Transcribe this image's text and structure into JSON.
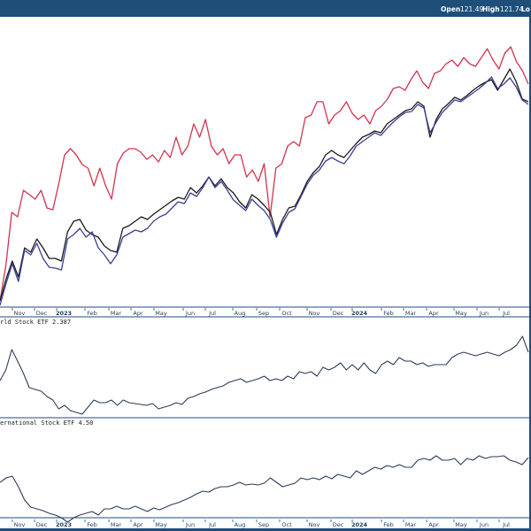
{
  "header": {
    "open_label": "Open",
    "open_value": "121.49",
    "high_label": "High",
    "high_value": "121.74",
    "low_label": "Lo"
  },
  "colors": {
    "frame": "#1f4e79",
    "series_red": "#d0344f",
    "series_dark": "#1a1a1a",
    "series_navy": "#3a3f99",
    "indicator_line": "#2e3c55"
  },
  "chart_data": [
    {
      "type": "line",
      "panel": "main",
      "grid": false,
      "x_tick_labels": [
        {
          "label": "Nov",
          "bold": false
        },
        {
          "label": "Dec",
          "bold": false
        },
        {
          "label": "2023",
          "bold": true
        },
        {
          "label": "Feb",
          "bold": false
        },
        {
          "label": "Mar",
          "bold": false
        },
        {
          "label": "Apr",
          "bold": false
        },
        {
          "label": "May",
          "bold": false
        },
        {
          "label": "Jun",
          "bold": false
        },
        {
          "label": "Jul",
          "bold": false
        },
        {
          "label": "Aug",
          "bold": false
        },
        {
          "label": "Sep",
          "bold": false
        },
        {
          "label": "Oct",
          "bold": false
        },
        {
          "label": "Nov",
          "bold": false
        },
        {
          "label": "Dec",
          "bold": false
        },
        {
          "label": "2024",
          "bold": true
        },
        {
          "label": "Feb",
          "bold": false
        },
        {
          "label": "Mar",
          "bold": false
        },
        {
          "label": "Apr",
          "bold": false
        },
        {
          "label": "May",
          "bold": false
        },
        {
          "label": "Jun",
          "bold": false
        },
        {
          "label": "Jul",
          "bold": false
        }
      ],
      "series": [
        {
          "color": "#d0344f",
          "values": [
            340,
            300,
            240,
            245,
            215,
            220,
            225,
            215,
            235,
            237,
            208,
            175,
            168,
            175,
            186,
            190,
            210,
            190,
            210,
            225,
            185,
            173,
            168,
            168,
            172,
            180,
            175,
            183,
            170,
            178,
            155,
            175,
            165,
            140,
            155,
            135,
            165,
            175,
            168,
            185,
            175,
            175,
            200,
            192,
            205,
            185,
            245,
            190,
            185,
            165,
            160,
            165,
            133,
            130,
            115,
            115,
            140,
            130,
            125,
            115,
            128,
            135,
            130,
            140,
            125,
            120,
            112,
            100,
            98,
            102,
            90,
            80,
            93,
            100,
            83,
            80,
            72,
            68,
            75,
            65,
            72,
            75,
            65,
            55,
            68,
            78,
            60,
            53,
            70,
            80,
            95
          ]
        },
        {
          "color": "#1a1a1a",
          "values": [
            340,
            315,
            295,
            313,
            280,
            285,
            270,
            280,
            292,
            292,
            295,
            262,
            250,
            248,
            260,
            265,
            268,
            278,
            283,
            285,
            258,
            255,
            250,
            245,
            248,
            242,
            237,
            232,
            227,
            223,
            225,
            212,
            218,
            210,
            200,
            210,
            202,
            212,
            218,
            228,
            235,
            220,
            225,
            232,
            240,
            265,
            248,
            235,
            233,
            220,
            205,
            195,
            188,
            175,
            170,
            175,
            178,
            170,
            162,
            155,
            152,
            148,
            150,
            140,
            135,
            130,
            125,
            123,
            115,
            120,
            155,
            135,
            123,
            117,
            110,
            113,
            108,
            102,
            97,
            93,
            90,
            102,
            90,
            78,
            92,
            112,
            115
          ]
        },
        {
          "color": "#3a3f99",
          "values": [
            345,
            320,
            298,
            318,
            283,
            288,
            275,
            292,
            302,
            303,
            305,
            270,
            265,
            258,
            268,
            262,
            280,
            288,
            298,
            288,
            268,
            264,
            260,
            262,
            258,
            250,
            245,
            242,
            235,
            228,
            230,
            218,
            222,
            212,
            200,
            212,
            205,
            215,
            226,
            232,
            238,
            225,
            232,
            238,
            248,
            268,
            252,
            240,
            236,
            222,
            208,
            198,
            192,
            182,
            178,
            182,
            185,
            176,
            165,
            160,
            155,
            150,
            153,
            145,
            138,
            132,
            127,
            126,
            118,
            122,
            150,
            138,
            127,
            120,
            113,
            115,
            110,
            105,
            100,
            94,
            87,
            100,
            95,
            88,
            98,
            113,
            118
          ]
        }
      ]
    },
    {
      "type": "line",
      "panel": "indicator-1",
      "label": "rld Stock ETF 2.387",
      "grid": false,
      "series": [
        {
          "color": "#2e3c55",
          "values": [
            430,
            418,
            395,
            408,
            422,
            438,
            440,
            442,
            448,
            452,
            462,
            458,
            464,
            466,
            468,
            460,
            452,
            455,
            455,
            452,
            458,
            452,
            455,
            456,
            457,
            458,
            456,
            462,
            460,
            458,
            455,
            457,
            450,
            448,
            445,
            443,
            440,
            438,
            436,
            432,
            430,
            428,
            432,
            430,
            428,
            425,
            430,
            428,
            430,
            425,
            428,
            420,
            422,
            420,
            425,
            415,
            418,
            415,
            410,
            418,
            412,
            418,
            410,
            418,
            422,
            412,
            408,
            412,
            404,
            408,
            408,
            412,
            410,
            414,
            412,
            412,
            412,
            404,
            400,
            398,
            400,
            402,
            400,
            398,
            400,
            402,
            398,
            395,
            390,
            380,
            398
          ]
        }
      ]
    },
    {
      "type": "line",
      "panel": "indicator-2",
      "label": "ernational Stock ETF 4.50",
      "grid": false,
      "series": [
        {
          "color": "#2e3c55",
          "values": [
            545,
            540,
            538,
            550,
            565,
            573,
            575,
            577,
            580,
            582,
            585,
            590,
            585,
            582,
            580,
            578,
            582,
            575,
            575,
            572,
            575,
            575,
            572,
            575,
            578,
            574,
            576,
            573,
            570,
            568,
            565,
            562,
            558,
            555,
            556,
            552,
            550,
            550,
            548,
            545,
            548,
            547,
            548,
            546,
            540,
            545,
            550,
            548,
            546,
            540,
            542,
            540,
            542,
            538,
            541,
            536,
            538,
            540,
            532,
            536,
            532,
            528,
            530,
            526,
            528,
            525,
            528,
            528,
            520,
            518,
            520,
            515,
            520,
            520,
            518,
            525,
            518,
            520,
            515,
            518,
            516,
            516,
            515,
            520,
            522,
            525,
            517
          ]
        }
      ]
    }
  ]
}
